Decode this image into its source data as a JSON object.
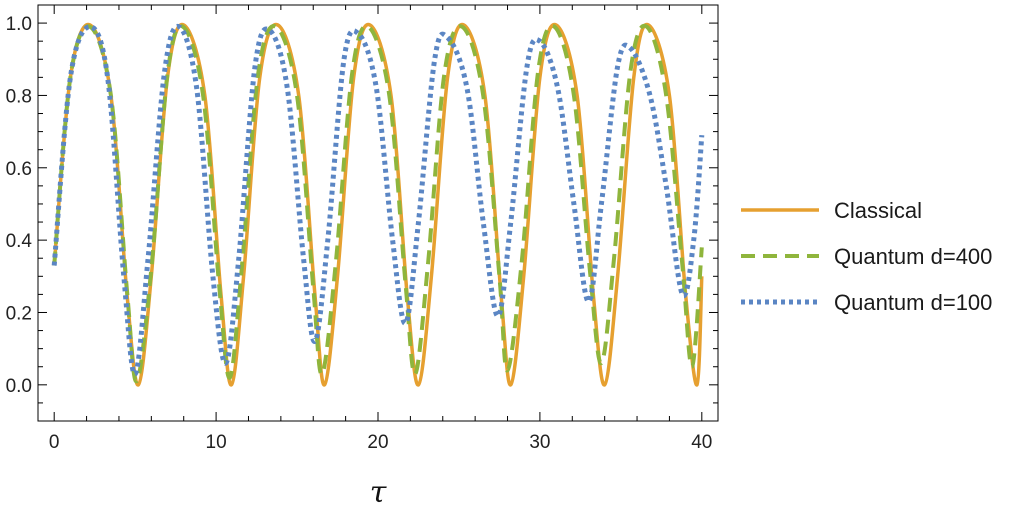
{
  "chart_data": {
    "type": "line",
    "xlabel": "τ",
    "ylabel": "",
    "xlim": [
      -1,
      41
    ],
    "ylim": [
      -0.1,
      1.05
    ],
    "xticks": [
      0,
      10,
      20,
      30,
      40
    ],
    "xtick_labels": [
      "0",
      "10",
      "20",
      "30",
      "40"
    ],
    "yticks": [
      0.0,
      0.2,
      0.4,
      0.6,
      0.8,
      1.0
    ],
    "ytick_labels": [
      "0.0",
      "0.2",
      "0.4",
      "0.6",
      "0.8",
      "1.0"
    ],
    "grid": false,
    "legend_position": "right",
    "series": [
      {
        "name": "Classical",
        "color": "#e6a030",
        "dash": "solid",
        "points": [
          [
            0,
            0.33
          ],
          [
            1,
            0.85
          ],
          [
            2.2,
            0.995
          ],
          [
            3.5,
            0.8
          ],
          [
            4.5,
            0.25
          ],
          [
            5.2,
            0.0
          ],
          [
            6,
            0.3
          ],
          [
            7,
            0.85
          ],
          [
            8,
            0.995
          ],
          [
            9.3,
            0.8
          ],
          [
            10.3,
            0.25
          ],
          [
            10.95,
            0.0
          ],
          [
            11.7,
            0.3
          ],
          [
            12.7,
            0.85
          ],
          [
            13.8,
            0.995
          ],
          [
            15.1,
            0.8
          ],
          [
            16.1,
            0.25
          ],
          [
            16.7,
            0.0
          ],
          [
            17.5,
            0.3
          ],
          [
            18.5,
            0.85
          ],
          [
            19.5,
            0.995
          ],
          [
            20.8,
            0.8
          ],
          [
            21.8,
            0.25
          ],
          [
            22.5,
            0.0
          ],
          [
            23.3,
            0.3
          ],
          [
            24.3,
            0.85
          ],
          [
            25.3,
            0.995
          ],
          [
            26.6,
            0.8
          ],
          [
            27.6,
            0.25
          ],
          [
            28.2,
            0.0
          ],
          [
            29,
            0.3
          ],
          [
            30,
            0.85
          ],
          [
            31,
            0.995
          ],
          [
            32.3,
            0.8
          ],
          [
            33.3,
            0.25
          ],
          [
            34,
            0.0
          ],
          [
            34.8,
            0.3
          ],
          [
            35.8,
            0.85
          ],
          [
            36.7,
            0.995
          ],
          [
            38,
            0.8
          ],
          [
            39,
            0.25
          ],
          [
            39.7,
            0.0
          ],
          [
            40,
            0.3
          ]
        ]
      },
      {
        "name": "Quantum d=400",
        "color": "#8fb53c",
        "dash": "dashed",
        "points": [
          [
            0,
            0.33
          ],
          [
            1,
            0.85
          ],
          [
            2.2,
            0.99
          ],
          [
            3.5,
            0.8
          ],
          [
            4.5,
            0.26
          ],
          [
            5.1,
            0.01
          ],
          [
            6,
            0.32
          ],
          [
            7,
            0.86
          ],
          [
            7.95,
            0.99
          ],
          [
            9.2,
            0.8
          ],
          [
            10.2,
            0.27
          ],
          [
            10.85,
            0.02
          ],
          [
            11.6,
            0.33
          ],
          [
            12.6,
            0.86
          ],
          [
            13.7,
            0.99
          ],
          [
            15,
            0.8
          ],
          [
            16,
            0.27
          ],
          [
            16.55,
            0.03
          ],
          [
            17.4,
            0.34
          ],
          [
            18.4,
            0.86
          ],
          [
            19.4,
            0.99
          ],
          [
            20.7,
            0.8
          ],
          [
            21.7,
            0.28
          ],
          [
            22.3,
            0.03
          ],
          [
            23.1,
            0.34
          ],
          [
            24.1,
            0.86
          ],
          [
            25.2,
            0.99
          ],
          [
            26.5,
            0.8
          ],
          [
            27.5,
            0.3
          ],
          [
            28,
            0.04
          ],
          [
            28.9,
            0.35
          ],
          [
            29.9,
            0.87
          ],
          [
            30.9,
            0.99
          ],
          [
            32.1,
            0.8
          ],
          [
            33.1,
            0.31
          ],
          [
            33.8,
            0.06
          ],
          [
            34.6,
            0.36
          ],
          [
            35.6,
            0.87
          ],
          [
            36.6,
            0.99
          ],
          [
            37.8,
            0.8
          ],
          [
            38.8,
            0.33
          ],
          [
            39.4,
            0.05
          ],
          [
            40,
            0.38
          ]
        ]
      },
      {
        "name": "Quantum d=100",
        "color": "#5b86c4",
        "dash": "dotted",
        "points": [
          [
            0,
            0.33
          ],
          [
            1,
            0.85
          ],
          [
            2.2,
            0.99
          ],
          [
            3.3,
            0.85
          ],
          [
            4.3,
            0.3
          ],
          [
            5,
            0.03
          ],
          [
            5.8,
            0.35
          ],
          [
            6.8,
            0.86
          ],
          [
            7.7,
            0.99
          ],
          [
            8.8,
            0.82
          ],
          [
            9.8,
            0.3
          ],
          [
            10.6,
            0.06
          ],
          [
            11.4,
            0.35
          ],
          [
            12.4,
            0.88
          ],
          [
            13.3,
            0.98
          ],
          [
            14.4,
            0.82
          ],
          [
            15.4,
            0.35
          ],
          [
            16.1,
            0.12
          ],
          [
            16.9,
            0.4
          ],
          [
            17.9,
            0.9
          ],
          [
            18.8,
            0.97
          ],
          [
            19.9,
            0.82
          ],
          [
            20.9,
            0.4
          ],
          [
            21.7,
            0.17
          ],
          [
            22.5,
            0.45
          ],
          [
            23.5,
            0.9
          ],
          [
            24.3,
            0.96
          ],
          [
            25.5,
            0.82
          ],
          [
            26.5,
            0.45
          ],
          [
            27.4,
            0.19
          ],
          [
            28.2,
            0.45
          ],
          [
            29.2,
            0.88
          ],
          [
            30,
            0.95
          ],
          [
            31.1,
            0.82
          ],
          [
            32.1,
            0.5
          ],
          [
            33,
            0.23
          ],
          [
            33.8,
            0.5
          ],
          [
            34.8,
            0.88
          ],
          [
            35.6,
            0.93
          ],
          [
            36.8,
            0.8
          ],
          [
            37.8,
            0.55
          ],
          [
            38.8,
            0.25
          ],
          [
            39.5,
            0.4
          ],
          [
            40,
            0.69
          ]
        ]
      }
    ]
  }
}
